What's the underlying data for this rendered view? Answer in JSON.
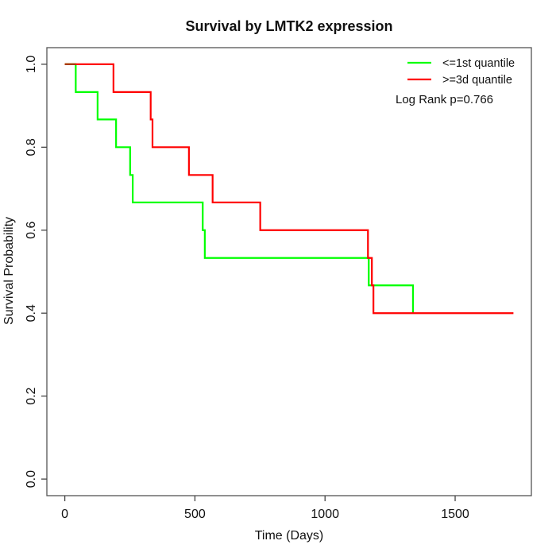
{
  "chart_data": {
    "type": "line",
    "subtype": "kaplan-meier-step-curve",
    "title": "Survival by LMTK2 expression",
    "xlabel": "Time (Days)",
    "ylabel": "Survival Probability",
    "xlim": [
      0,
      1724
    ],
    "ylim": [
      0,
      1
    ],
    "axis_padding_frac": 0.04,
    "x_ticks": [
      0,
      500,
      1000,
      1500
    ],
    "x_tick_labels": [
      "0",
      "500",
      "1000",
      "1500"
    ],
    "y_ticks": [
      0,
      0.2,
      0.4,
      0.6,
      0.8,
      1.0
    ],
    "y_tick_labels": [
      "0.0",
      "0.2",
      "0.4",
      "0.6",
      "0.8",
      "1.0"
    ],
    "grid": false,
    "legend_position": "top-right",
    "annotation": "Log Rank p=0.766",
    "overlap_segment_color": "#aa3a00",
    "axis_color": "#444444",
    "series": [
      {
        "name": "<=1st quantile",
        "color": "#00ff00",
        "event_times": [
          0,
          42,
          126,
          197,
          251,
          261,
          530,
          538,
          1168,
          1338
        ],
        "survival_probs": [
          1.0,
          0.933,
          0.867,
          0.8,
          0.733,
          0.667,
          0.6,
          0.533,
          0.467,
          0.4
        ],
        "end_time": 1338
      },
      {
        "name": ">=3d quantile",
        "color": "#ff0000",
        "event_times": [
          0,
          187,
          330,
          337,
          477,
          568,
          751,
          1165,
          1180,
          1186
        ],
        "survival_probs": [
          1.0,
          0.933,
          0.867,
          0.8,
          0.733,
          0.667,
          0.6,
          0.533,
          0.467,
          0.4
        ],
        "end_time": 1724
      }
    ]
  }
}
